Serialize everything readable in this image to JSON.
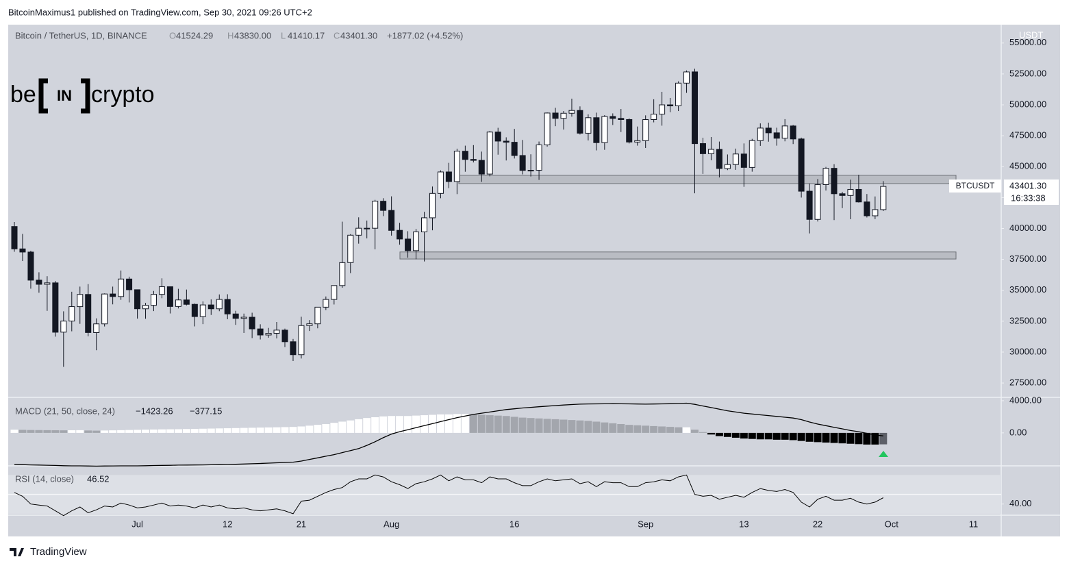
{
  "header": {
    "published": "BitcoinMaximus1 published on TradingView.com, Sep 30, 2021 09:26 UTC+2",
    "footer": "TradingView"
  },
  "logo": {
    "left": "be",
    "mid": "IN",
    "right": "crypto"
  },
  "chart_data": [
    {
      "type": "candlestick",
      "title": "Bitcoin / TetherUS, 1D, BINANCE",
      "legend": [
        {
          "key": "O",
          "value": "41524.29"
        },
        {
          "key": "H",
          "value": "43830.00"
        },
        {
          "key": "L",
          "value": "41410.17"
        },
        {
          "key": "C",
          "value": "43401.30"
        }
      ],
      "change": "+1877.02 (+4.52%)",
      "currency": "USDT",
      "symbol": "BTCUSDT",
      "last_price": "43401.30",
      "countdown": "16:33:38",
      "up_color": "#ffffff",
      "down_color": "#131722",
      "categories": [
        null,
        null,
        null,
        null,
        null,
        null,
        null,
        null,
        null,
        null,
        null,
        null,
        null,
        null,
        null,
        "Jul",
        null,
        null,
        null,
        null,
        null,
        null,
        null,
        null,
        null,
        null,
        "12",
        null,
        null,
        null,
        null,
        null,
        null,
        null,
        null,
        "21",
        null,
        null,
        null,
        null,
        null,
        null,
        null,
        null,
        null,
        null,
        "Aug",
        null,
        null,
        null,
        null,
        null,
        null,
        null,
        null,
        null,
        null,
        null,
        null,
        null,
        null,
        "16",
        null,
        null,
        null,
        null,
        null,
        null,
        null,
        null,
        null,
        null,
        null,
        null,
        null,
        null,
        null,
        "Sep",
        null,
        null,
        null,
        null,
        null,
        null,
        null,
        null,
        null,
        null,
        null,
        "13",
        null,
        null,
        null,
        null,
        null,
        null,
        null,
        null,
        "22",
        null,
        null,
        null,
        null,
        null,
        null,
        null,
        null,
        "Oct",
        null,
        null,
        null,
        null,
        null,
        null,
        null,
        null,
        null,
        "11"
      ],
      "open": [
        40156,
        38349,
        38092,
        35820,
        35484,
        35600,
        31614,
        32509,
        33676,
        34663,
        31576,
        32283,
        34702,
        34494,
        35911,
        35045,
        33502,
        33786,
        34669,
        35288,
        33690,
        34220,
        33863,
        32875,
        33815,
        33502,
        34259,
        33087,
        32730,
        32821,
        31874,
        31383,
        31521,
        31778,
        30839,
        29790,
        32144,
        32287,
        33634,
        34261,
        35381,
        37241,
        39456,
        40019,
        40018,
        42206,
        41461,
        39850,
        39146,
        38207,
        39723,
        40862,
        42836,
        44572,
        43794,
        46248,
        45585,
        45510,
        44400,
        47799,
        47064,
        46974,
        45902,
        44696,
        44709,
        46760,
        49339,
        48906,
        49322,
        49546,
        47706,
        48961,
        46942,
        49059,
        48903,
        48811,
        46991,
        47100,
        48810,
        49246,
        50000,
        49918,
        51757,
        52666,
        46868,
        46049,
        46396,
        44842,
        45173,
        46025,
        44940,
        47103,
        48121,
        47737,
        47299,
        48292,
        47242,
        43016,
        40734,
        43546,
        44866,
        42810,
        42670,
        43160,
        42147,
        41025,
        41524.29,
        null,
        null,
        null,
        null,
        null,
        null,
        null,
        null,
        null,
        null,
        null
      ],
      "high": [
        40528,
        39559,
        38200,
        36457,
        36137,
        35750,
        33298,
        34881,
        35298,
        35500,
        32730,
        34749,
        35297,
        36600,
        36100,
        35057,
        33977,
        34945,
        35967,
        35293,
        35118,
        35059,
        33929,
        34100,
        34262,
        34666,
        34679,
        33340,
        33114,
        33185,
        32249,
        31955,
        32435,
        31899,
        31063,
        32859,
        32591,
        33650,
        34500,
        35398,
        40550,
        39542,
        40900,
        40640,
        42316,
        42448,
        42599,
        40459,
        39780,
        39969,
        41350,
        43392,
        44700,
        45310,
        46454,
        46700,
        46743,
        46218,
        47886,
        48144,
        47372,
        48053,
        47160,
        46000,
        47033,
        49382,
        49757,
        49500,
        50500,
        49875,
        49230,
        49368,
        49169,
        49309,
        49667,
        48906,
        48246,
        49150,
        50450,
        51054,
        50558,
        51900,
        52780,
        52920,
        47340,
        47399,
        47031,
        45987,
        46460,
        46880,
        47250,
        48500,
        48557,
        48150,
        48843,
        48372,
        47347,
        43639,
        44000,
        44978,
        45200,
        42966,
        43950,
        44350,
        42787,
        42590,
        43830,
        null,
        null,
        null,
        null,
        null,
        null,
        null,
        null,
        null,
        null,
        null
      ],
      "low": [
        38116,
        37365,
        35129,
        34803,
        33336,
        31251,
        28805,
        31683,
        32286,
        31275,
        30151,
        32072,
        33862,
        34225,
        34017,
        32711,
        32699,
        33316,
        34357,
        33125,
        33532,
        33777,
        32077,
        32261,
        33004,
        33307,
        32658,
        32202,
        31550,
        31133,
        31020,
        31164,
        31108,
        30407,
        29278,
        29482,
        31708,
        31925,
        33401,
        33851,
        35205,
        36384,
        38772,
        39200,
        38313,
        41000,
        39422,
        38690,
        37642,
        37508,
        37332,
        39853,
        42446,
        43261,
        42779,
        44589,
        45341,
        43770,
        44217,
        45971,
        45500,
        45660,
        44376,
        44203,
        43927,
        46622,
        48274,
        48000,
        49045,
        47600,
        47119,
        46315,
        46363,
        48370,
        47801,
        46876,
        46700,
        46513,
        48584,
        48316,
        49400,
        49500,
        50969,
        42843,
        44413,
        45514,
        44132,
        44723,
        44742,
        43370,
        44594,
        46682,
        47021,
        46699,
        47050,
        46829,
        42500,
        39600,
        40565,
        43069,
        40675,
        41646,
        40750,
        42098,
        40888,
        40753,
        41410.17,
        null,
        null,
        null,
        null,
        null,
        null,
        null,
        null,
        null,
        null,
        null
      ],
      "close": [
        38349,
        38092,
        35820,
        35484,
        35600,
        31608,
        32509,
        33678,
        34663,
        31584,
        32283,
        34700,
        34494,
        35911,
        35045,
        33504,
        33786,
        34669,
        35287,
        33690,
        34220,
        33863,
        32875,
        33815,
        33502,
        34259,
        33087,
        32730,
        32821,
        31880,
        31383,
        31521,
        31778,
        30839,
        29790,
        32144,
        32287,
        33634,
        34258,
        35381,
        37237,
        39457,
        40019,
        40016,
        42206,
        41461,
        39845,
        39147,
        38207,
        39723,
        40862,
        42836,
        44572,
        43794,
        46253,
        45584,
        45511,
        44399,
        47800,
        47068,
        46974,
        45901,
        44695,
        44705,
        46760,
        49339,
        48905,
        49321,
        49546,
        47707,
        48960,
        46942,
        49058,
        48903,
        48811,
        46991,
        47100,
        48810,
        49246,
        49999,
        49915,
        51757,
        52663,
        46864,
        46049,
        46400,
        44851,
        45173,
        46025,
        44940,
        47111,
        48122,
        47737,
        47299,
        48293,
        47241,
        43015,
        40734,
        43543,
        44865,
        42810,
        42670,
        43160,
        42147,
        41026,
        41524,
        43401.3,
        null,
        null,
        null,
        null,
        null,
        null,
        null,
        null,
        null,
        null,
        null
      ],
      "zones": [
        {
          "low": 43630,
          "high": 44300
        },
        {
          "low": 37530,
          "high": 38100
        }
      ],
      "ylim": [
        26450,
        56430
      ],
      "yticks": [
        {
          "value": 27500,
          "label": "27500.00"
        },
        {
          "value": 30000,
          "label": "30000.00"
        },
        {
          "value": 32500,
          "label": "32500.00"
        },
        {
          "value": 35000,
          "label": "35000.00"
        },
        {
          "value": 37500,
          "label": "37500.00"
        },
        {
          "value": 40000,
          "label": "40000.00"
        },
        {
          "value": 42500,
          "label": "42500.00"
        },
        {
          "value": 45000,
          "label": "45000.00"
        },
        {
          "value": 47500,
          "label": "47500.00"
        },
        {
          "value": 50000,
          "label": "50000.00"
        },
        {
          "value": 52500,
          "label": "52500.00"
        },
        {
          "value": 55000,
          "label": "55000.00"
        }
      ]
    },
    {
      "type": "macd",
      "title": "MACD (21, 50, close, 24)",
      "value_labels": [
        "−1423.26",
        "−377.15"
      ],
      "colors": {
        "pos_up": "#ffffff",
        "pos_down": "#a3a6ad",
        "neg_down": "#000000",
        "neg_up": "#5d6068",
        "line": "#000000"
      },
      "histogram": [
        400,
        380,
        360,
        350,
        340,
        330,
        320,
        330,
        340,
        300,
        280,
        300,
        320,
        340,
        360,
        380,
        400,
        420,
        440,
        450,
        460,
        480,
        500,
        520,
        540,
        560,
        580,
        600,
        620,
        640,
        660,
        680,
        700,
        720,
        740,
        800,
        900,
        1000,
        1100,
        1250,
        1400,
        1550,
        1700,
        1850,
        1950,
        2050,
        2100,
        2100,
        2100,
        2150,
        2200,
        2250,
        2300,
        2300,
        2350,
        2350,
        2300,
        2250,
        2200,
        2150,
        2100,
        2000,
        1900,
        1850,
        1800,
        1750,
        1700,
        1650,
        1600,
        1550,
        1500,
        1400,
        1300,
        1200,
        1100,
        1000,
        950,
        900,
        850,
        800,
        750,
        700,
        700,
        400,
        100,
        -200,
        -400,
        -500,
        -600,
        -700,
        -750,
        -800,
        -800,
        -850,
        -850,
        -900,
        -1000,
        -1100,
        -1150,
        -1200,
        -1250,
        -1300,
        -1350,
        -1400,
        -1450,
        -1450,
        -1423.26,
        null,
        null,
        null,
        null,
        null,
        null,
        null,
        null,
        null,
        null,
        null
      ],
      "macd": [
        -3900,
        -3950,
        -3980,
        -4000,
        -4020,
        -4050,
        -4080,
        -4100,
        -4100,
        -4120,
        -4130,
        -4120,
        -4110,
        -4100,
        -4100,
        -4100,
        -4080,
        -4060,
        -4040,
        -4030,
        -4010,
        -4000,
        -3990,
        -3980,
        -3960,
        -3950,
        -3930,
        -3900,
        -3870,
        -3840,
        -3800,
        -3760,
        -3720,
        -3680,
        -3640,
        -3500,
        -3300,
        -3100,
        -2900,
        -2700,
        -2450,
        -2200,
        -1950,
        -1550,
        -1100,
        -600,
        -150,
        150,
        400,
        650,
        900,
        1150,
        1400,
        1650,
        1900,
        2100,
        2300,
        2450,
        2600,
        2750,
        2900,
        3000,
        3100,
        3180,
        3250,
        3330,
        3400,
        3470,
        3530,
        3580,
        3600,
        3610,
        3620,
        3630,
        3620,
        3610,
        3590,
        3580,
        3590,
        3610,
        3630,
        3660,
        3700,
        3550,
        3350,
        3150,
        2950,
        2750,
        2600,
        2450,
        2350,
        2250,
        2150,
        2050,
        1950,
        1850,
        1650,
        1350,
        1100,
        900,
        700,
        500,
        300,
        150,
        -50,
        -250,
        -377.15,
        null,
        null,
        null,
        null,
        null,
        null,
        null,
        null,
        null,
        null,
        null
      ],
      "ylim": [
        -4100,
        4250
      ],
      "yticks": [
        {
          "value": 0,
          "label": "0.00"
        },
        {
          "value": 4000,
          "label": "4000.00"
        }
      ]
    },
    {
      "type": "rsi",
      "title": "RSI (14, close)",
      "value_label": "46.52",
      "color": "#000000",
      "band": [
        30,
        70
      ],
      "midline": 50,
      "values": [
        52,
        48,
        40,
        39,
        38,
        33,
        28,
        33,
        37,
        31,
        34,
        38,
        37,
        41,
        39,
        36,
        37,
        39,
        41,
        38,
        39,
        38,
        36,
        39,
        37,
        39,
        36,
        35,
        36,
        34,
        33,
        34,
        35,
        33,
        30,
        43,
        44,
        48,
        52,
        55,
        57,
        63,
        66,
        66,
        70,
        68,
        63,
        60,
        56,
        61,
        63,
        66,
        70,
        64,
        68,
        65,
        65,
        62,
        68,
        66,
        66,
        62,
        59,
        59,
        63,
        66,
        64,
        65,
        66,
        61,
        63,
        58,
        63,
        62,
        62,
        58,
        58,
        62,
        63,
        65,
        64,
        68,
        70,
        50,
        48,
        49,
        45,
        47,
        49,
        47,
        52,
        56,
        54,
        53,
        55,
        52,
        42,
        37,
        45,
        48,
        44,
        44,
        46,
        42,
        40,
        42,
        46.52,
        null,
        null,
        null,
        null,
        null,
        null,
        null,
        null,
        null,
        null,
        null
      ],
      "ylim": [
        28.5,
        78
      ],
      "yticks": [
        {
          "value": 40,
          "label": "40.00"
        }
      ]
    }
  ]
}
